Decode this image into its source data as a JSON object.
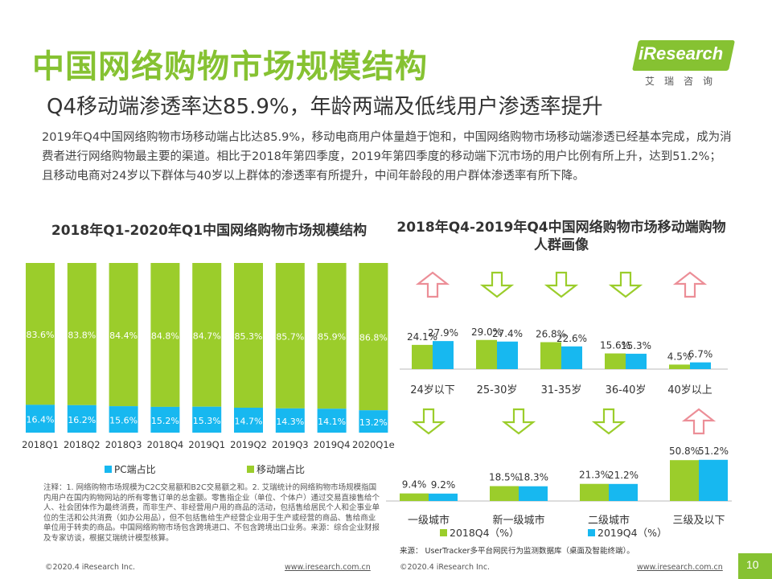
{
  "page": {
    "title": "中国网络购物市场规模结构",
    "subtitle": "Q4移动端渗透率达85.9%，年龄两端及低线用户渗透率提升",
    "intro": "2019年Q4中国网络购物市场移动端占比达85.9%，移动电商用户体量趋于饱和，中国网络购物市场移动端渗透已经基本完成，成为消费者进行网络购物最主要的渠道。相比于2018年第四季度，2019年第四季度的移动端下沉市场的用户比例有所上升，达到51.2%；且移动电商对24岁以下群体与40岁以上群体的渗透率有所提升，中间年龄段的用户群体渗透率有所下降。",
    "logo_text": "iResearch",
    "logo_cn": "艾瑞咨询",
    "note": "注释：1. 网络购物市场规模为C2C交易额和B2C交易额之和。2. 艾瑞统计的网络购物市场规模指国内用户在国内购物网站的所有零售订单的总金额。零售指企业（单位、个体户）通过交易直接售给个人、社会团体作为最终消费，而非生产、非经营用户用的商品的活动，包括售给居民个人和企事业单位的生活和公共消费（如办公用品），但不包括售给生产经营企业用于生产或经营的商品、售给商业单位用于转卖的商品。中国网络购物市场包含跨境进口、不包含跨境出口业务。来源：综合企业财报及专家访谈，根据艾瑞统计模型核算。",
    "source": "来源：  UserTracker多平台网民行为监测数据库（桌面及智能终端）。",
    "footer_left_copyright": "©2020.4 iResearch Inc.",
    "footer_left_url": "www.iresearch.com.cn",
    "footer_right_copyright": "©2020.4 iResearch Inc.",
    "footer_right_url": "www.iresearch.com.cn",
    "page_number": "10"
  },
  "colors": {
    "brand_green": "#86c232",
    "bar_green": "#9bcd2b",
    "bar_blue": "#17b8f0",
    "arrow_up": "#ec8e97",
    "arrow_down": "#9bcd2b"
  },
  "chart_data": [
    {
      "type": "bar",
      "stacked": true,
      "percent": true,
      "title": "2018年Q1-2020年Q1中国网络购物市场规模结构",
      "categories": [
        "2018Q1",
        "2018Q2",
        "2018Q3",
        "2018Q4",
        "2019Q1",
        "2019Q2",
        "2019Q3",
        "2019Q4",
        "2020Q1e"
      ],
      "series": [
        {
          "name": "PC端占比",
          "color": "#17b8f0",
          "values": [
            16.4,
            16.2,
            15.6,
            15.2,
            15.3,
            14.7,
            14.3,
            14.1,
            13.2
          ]
        },
        {
          "name": "移动端占比",
          "color": "#9bcd2b",
          "values": [
            83.6,
            83.8,
            84.4,
            84.8,
            84.7,
            85.3,
            85.7,
            85.9,
            86.8
          ]
        }
      ],
      "ylim": [
        0,
        100
      ],
      "legend": "bottom"
    },
    {
      "type": "bar",
      "title": "2018年Q4-2019年Q4中国网络购物市场移动端购物人群画像",
      "categories": [
        "24岁以下",
        "25-30岁",
        "31-35岁",
        "36-40岁",
        "40岁以上"
      ],
      "series": [
        {
          "name": "2018Q4（%）",
          "color": "#9bcd2b",
          "values": [
            24.1,
            29.0,
            26.8,
            15.6,
            4.5
          ]
        },
        {
          "name": "2019Q4（%）",
          "color": "#17b8f0",
          "values": [
            27.9,
            27.4,
            22.6,
            15.3,
            6.7
          ]
        }
      ],
      "trend": [
        "up",
        "down",
        "down",
        "down",
        "up"
      ]
    },
    {
      "type": "bar",
      "categories": [
        "一级城市",
        "新一级城市",
        "二级城市",
        "三级及以下"
      ],
      "series": [
        {
          "name": "2018Q4（%）",
          "color": "#9bcd2b",
          "values": [
            9.4,
            18.5,
            21.3,
            50.8
          ]
        },
        {
          "name": "2019Q4（%）",
          "color": "#17b8f0",
          "values": [
            9.2,
            18.3,
            21.2,
            51.2
          ]
        }
      ],
      "trend": [
        "down",
        "down",
        "down",
        "up"
      ],
      "legend": "bottom"
    }
  ]
}
